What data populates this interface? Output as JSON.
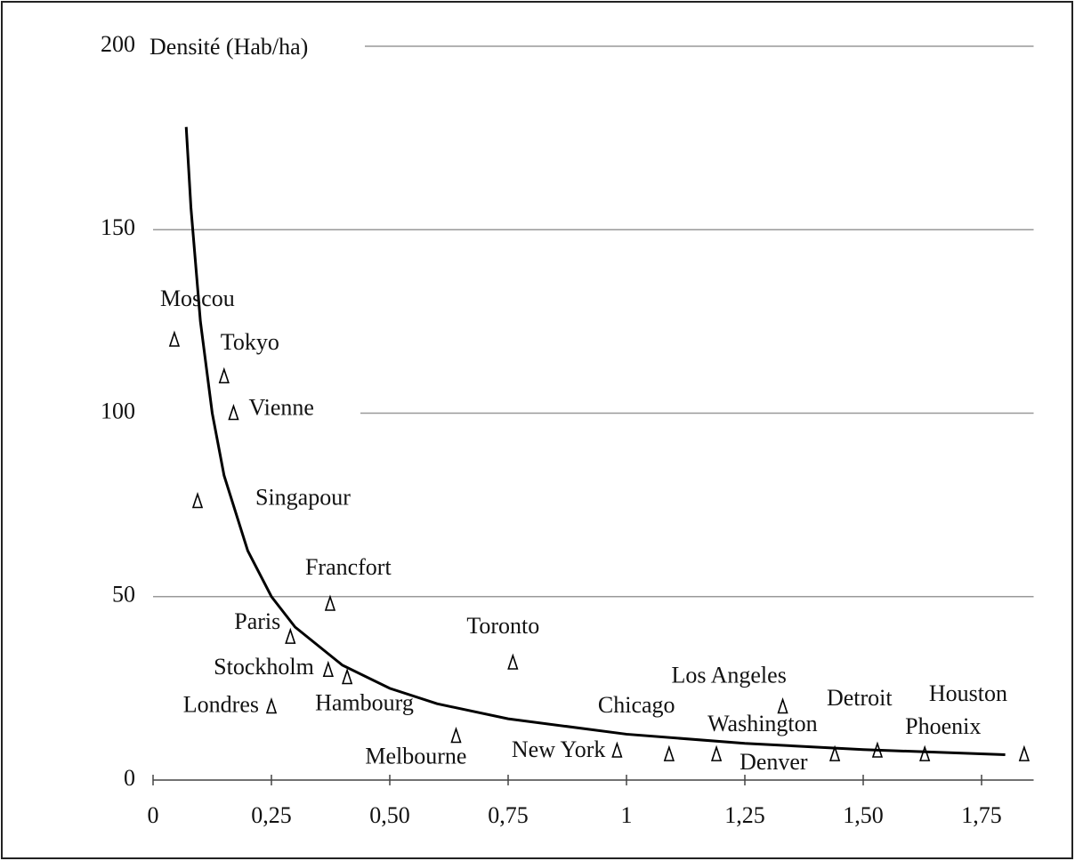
{
  "chart_data": {
    "type": "scatter",
    "y_label": "Densité (Hab/ha)",
    "categories": [
      "Moscou",
      "Tokyo",
      "Vienne",
      "Singapour",
      "Francfort",
      "Paris",
      "Stockholm",
      "Hambourg",
      "Londres",
      "Melbourne",
      "Toronto",
      "New York",
      "Chicago",
      "Washington",
      "Los Angeles",
      "Denver",
      "Detroit",
      "Phoenix",
      "Houston"
    ],
    "x": [
      0.045,
      0.15,
      0.17,
      0.094,
      0.374,
      0.29,
      0.37,
      0.41,
      0.25,
      0.64,
      0.76,
      0.98,
      1.09,
      1.19,
      1.33,
      1.44,
      1.53,
      1.63,
      1.84
    ],
    "values": [
      120,
      110,
      100,
      76,
      48,
      39,
      30,
      28,
      20,
      12,
      32,
      8,
      7,
      7,
      20,
      7,
      8,
      7,
      7
    ],
    "curve": {
      "x": [
        0.07,
        0.08,
        0.1,
        0.125,
        0.15,
        0.2,
        0.25,
        0.3,
        0.4,
        0.5,
        0.6,
        0.75,
        1,
        1.25,
        1.5,
        1.8
      ],
      "values": [
        178,
        156,
        125,
        100,
        83,
        62.5,
        50,
        41.7,
        31.3,
        25,
        20.8,
        16.7,
        12.5,
        10,
        8.3,
        6.9
      ]
    },
    "xlim": [
      0,
      1.86
    ],
    "xticks": [
      0,
      {
        "value": 0.25,
        "label": "0,25"
      },
      {
        "value": 0.5,
        "label": "0,50"
      },
      {
        "value": 0.75,
        "label": "0,75"
      },
      1,
      {
        "value": 1.25,
        "label": "1,25"
      },
      {
        "value": 1.5,
        "label": "1,50"
      },
      {
        "value": 1.75,
        "label": "1,75"
      }
    ],
    "ylim": [
      0,
      200
    ],
    "yticks": [
      0,
      50,
      100,
      150,
      200
    ],
    "grid": true,
    "color": "#000000"
  }
}
